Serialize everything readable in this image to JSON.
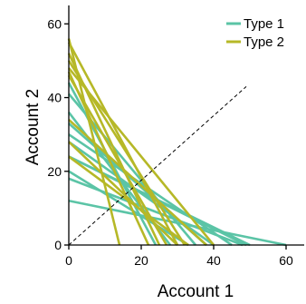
{
  "chart_data": {
    "type": "line",
    "xlabel": "Account 1",
    "ylabel": "Account 2",
    "xlim": [
      0,
      65
    ],
    "ylim": [
      0,
      65
    ],
    "xticks": [
      0,
      20,
      40,
      60
    ],
    "yticks": [
      0,
      20,
      40,
      60
    ],
    "grid": false,
    "legend_position": "top-right",
    "diagonal_reference": {
      "from": [
        0,
        0
      ],
      "to": [
        49,
        43
      ],
      "style": "dashed",
      "color": "#000000"
    },
    "series": [
      {
        "name": "Type 1",
        "color": "#5bc4a6",
        "lines": [
          [
            [
              0,
              44
            ],
            [
              24,
              0
            ]
          ],
          [
            [
              0,
              41
            ],
            [
              35,
              0
            ]
          ],
          [
            [
              0,
              36
            ],
            [
              28,
              0
            ]
          ],
          [
            [
              0,
              33
            ],
            [
              38,
              0
            ]
          ],
          [
            [
              0,
              30
            ],
            [
              45,
              0
            ]
          ],
          [
            [
              0,
              28
            ],
            [
              40,
              0
            ]
          ],
          [
            [
              0,
              24
            ],
            [
              50,
              0
            ]
          ],
          [
            [
              0,
              24
            ],
            [
              49,
              0
            ]
          ],
          [
            [
              0,
              20
            ],
            [
              33,
              0
            ]
          ],
          [
            [
              0,
              18
            ],
            [
              48,
              0
            ]
          ],
          [
            [
              0,
              12
            ],
            [
              60,
              0
            ]
          ]
        ]
      },
      {
        "name": "Type 2",
        "color": "#b6b827",
        "lines": [
          [
            [
              0,
              56
            ],
            [
              14,
              0
            ]
          ],
          [
            [
              0,
              55
            ],
            [
              30,
              0
            ]
          ],
          [
            [
              0,
              52
            ],
            [
              25,
              0
            ]
          ],
          [
            [
              0,
              50
            ],
            [
              32,
              0
            ]
          ],
          [
            [
              0,
              48
            ],
            [
              40,
              0
            ]
          ],
          [
            [
              0,
              47
            ],
            [
              22,
              0
            ]
          ],
          [
            [
              0,
              46
            ],
            [
              27,
              0
            ]
          ],
          [
            [
              0,
              34
            ],
            [
              38,
              0
            ]
          ],
          [
            [
              0,
              28
            ],
            [
              30,
              0
            ]
          ],
          [
            [
              0,
              24
            ],
            [
              33,
              0
            ]
          ]
        ]
      }
    ]
  }
}
